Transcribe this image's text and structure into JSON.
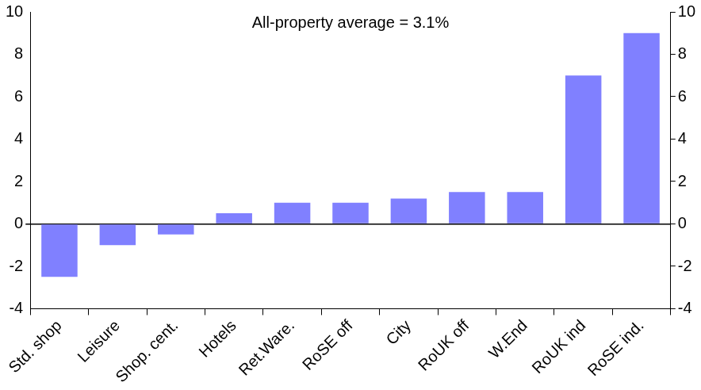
{
  "chart_data": {
    "type": "bar",
    "annotation": "All-property average = 3.1%",
    "categories": [
      "Std. shop",
      "Leisure",
      "Shop. cent.",
      "Hotels",
      "Ret.Ware.",
      "RoSE off",
      "City",
      "RoUK off",
      "W.End",
      "RoUK ind",
      "RoSE ind."
    ],
    "values": [
      -2.5,
      -1.0,
      -0.5,
      0.5,
      1.0,
      1.0,
      1.2,
      1.5,
      1.5,
      7.0,
      9.0
    ],
    "color": "#8080ff",
    "ylim": [
      -4,
      10
    ],
    "yticks": [
      -4,
      -2,
      0,
      2,
      4,
      6,
      8,
      10
    ],
    "y2lim": [
      -4,
      10
    ],
    "y2ticks": [
      -4,
      -2,
      0,
      2,
      4,
      6,
      8,
      10
    ],
    "grid": false
  }
}
